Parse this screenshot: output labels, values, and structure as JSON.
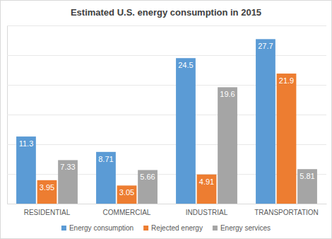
{
  "chart_data": {
    "type": "bar",
    "title": "Estimated U.S. energy consumption in 2015",
    "categories": [
      "RESIDENTIAL",
      "COMMERCIAL",
      "INDUSTRIAL",
      "TRANSPORTATION"
    ],
    "series": [
      {
        "name": "Energy consumption",
        "color": "#5b9bd5",
        "values": [
          11.3,
          8.71,
          24.5,
          27.7
        ]
      },
      {
        "name": "Rejected energy",
        "color": "#ed7d31",
        "values": [
          3.95,
          3.05,
          4.91,
          21.9
        ]
      },
      {
        "name": "Energy services",
        "color": "#a5a5a5",
        "values": [
          7.33,
          5.66,
          19.6,
          5.81
        ]
      }
    ],
    "ylim": [
      0,
      30
    ],
    "yticks": [
      0,
      5,
      10,
      15,
      20,
      25,
      30
    ],
    "grid": true,
    "data_labels": true,
    "tick_labels": "x",
    "legend": "bottom"
  }
}
